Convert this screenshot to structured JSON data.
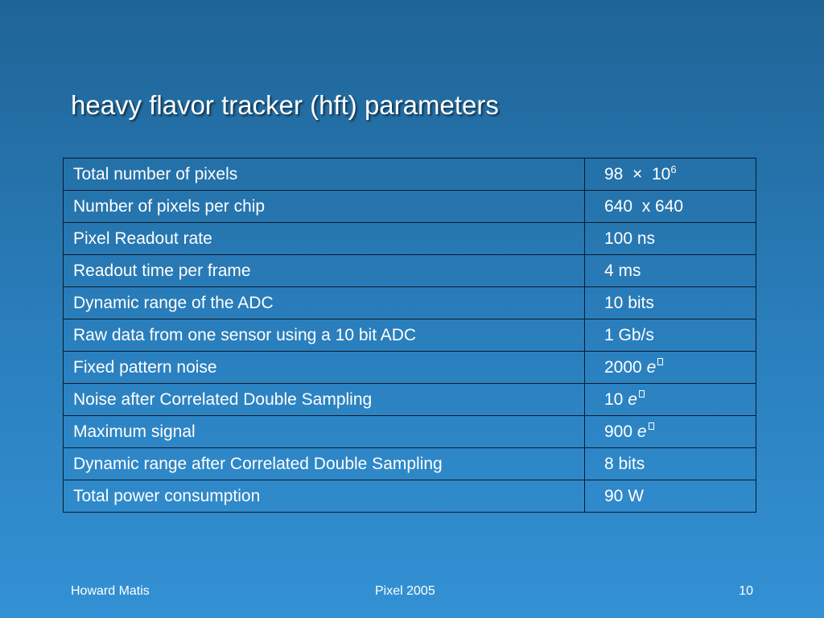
{
  "slide": {
    "title": "heavy flavor tracker (hft) parameters"
  },
  "table": {
    "rows": [
      {
        "name": "Total number of pixels",
        "value": "98",
        "times": "×",
        "base": "10",
        "exponent": "6"
      },
      {
        "name": "Number of pixels per chip",
        "value": "640  x 640"
      },
      {
        "name": "Pixel Readout rate",
        "value": "100 ns"
      },
      {
        "name": "Readout time per frame",
        "value": "4 ms"
      },
      {
        "name": "Dynamic range of the ADC",
        "value": "10 bits"
      },
      {
        "name": "Raw data from one sensor using a 10 bit ADC",
        "value": "1 Gb/s"
      },
      {
        "name": "Fixed pattern noise",
        "value": "2000",
        "unit": "e"
      },
      {
        "name": "Noise after Correlated Double Sampling",
        "value": "10",
        "unit": "e"
      },
      {
        "name": "Maximum signal",
        "value": "900",
        "unit": "e"
      },
      {
        "name": "Dynamic range after Correlated Double Sampling",
        "value": "8 bits"
      },
      {
        "name": "Total power consumption",
        "value": "90 W"
      }
    ]
  },
  "footer": {
    "author": "Howard Matis",
    "event": "Pixel 2005",
    "page_number": "10"
  }
}
